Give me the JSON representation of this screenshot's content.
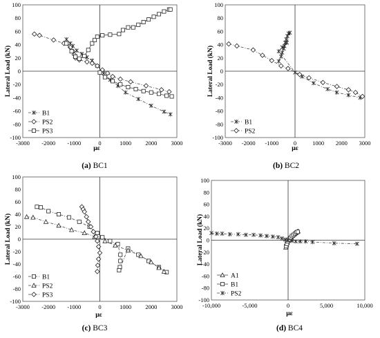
{
  "chart_data": [
    {
      "type": "scatter",
      "caption_bold": "(a)",
      "caption_rest": " BC1",
      "xlabel": "με",
      "ylabel": "Lateral Load (kN)",
      "xlim": [
        -3000,
        3000
      ],
      "ylim": [
        -100,
        100
      ],
      "xticks": [
        -3000,
        -2000,
        -1000,
        0,
        1000,
        2000,
        3000
      ],
      "yticks": [
        -100,
        -80,
        -60,
        -40,
        -20,
        0,
        20,
        40,
        60,
        80,
        100
      ],
      "legend": "bottom-left",
      "series": [
        {
          "name": "B1",
          "marker": "star",
          "line": "dashdot",
          "points": [
            [
              -1300,
              48
            ],
            [
              -1150,
              42
            ],
            [
              -1050,
              38
            ],
            [
              -900,
              31
            ],
            [
              -700,
              26
            ],
            [
              -500,
              21
            ],
            [
              -300,
              16
            ],
            [
              -100,
              8
            ],
            [
              150,
              -3
            ],
            [
              400,
              -13
            ],
            [
              700,
              -22
            ],
            [
              1000,
              -32
            ],
            [
              1500,
              -42
            ],
            [
              2000,
              -52
            ],
            [
              2500,
              -61
            ],
            [
              2750,
              -65
            ]
          ]
        },
        {
          "name": "PS2",
          "marker": "diamond",
          "line": "dashdot",
          "points": [
            [
              -2550,
              56
            ],
            [
              -2350,
              54
            ],
            [
              -1800,
              47
            ],
            [
              -1400,
              42
            ],
            [
              -1150,
              36
            ],
            [
              -1050,
              30
            ],
            [
              -1000,
              25
            ],
            [
              -950,
              20
            ],
            [
              -800,
              17
            ],
            [
              -500,
              14
            ],
            [
              -300,
              12
            ],
            [
              -100,
              8
            ],
            [
              100,
              2
            ],
            [
              300,
              -3
            ],
            [
              500,
              -8
            ],
            [
              800,
              -12
            ],
            [
              1200,
              -16
            ],
            [
              1800,
              -22
            ],
            [
              2400,
              -28
            ],
            [
              2700,
              -31
            ]
          ]
        },
        {
          "name": "PS3",
          "marker": "square",
          "line": "solid",
          "points": [
            [
              -1300,
              42
            ],
            [
              -1100,
              30
            ],
            [
              -950,
              22
            ],
            [
              -800,
              19
            ],
            [
              -600,
              23
            ],
            [
              -450,
              32
            ],
            [
              -300,
              42
            ],
            [
              -200,
              47
            ],
            [
              -100,
              52
            ],
            [
              100,
              54
            ],
            [
              400,
              55
            ],
            [
              750,
              56
            ],
            [
              900,
              62
            ],
            [
              1100,
              66
            ],
            [
              1300,
              66
            ],
            [
              1500,
              70
            ],
            [
              1700,
              74
            ],
            [
              1900,
              78
            ],
            [
              2100,
              82
            ],
            [
              2300,
              86
            ],
            [
              2500,
              90
            ],
            [
              2700,
              93
            ],
            [
              2750,
              93
            ]
          ]
        },
        {
          "name": "",
          "marker": "square",
          "line": "solid",
          "points": [
            [
              0,
              -2
            ],
            [
              200,
              -9
            ],
            [
              500,
              -15
            ],
            [
              800,
              -20
            ],
            [
              1100,
              -24
            ],
            [
              1400,
              -27
            ],
            [
              1700,
              -30
            ],
            [
              2000,
              -32
            ],
            [
              2300,
              -34
            ],
            [
              2600,
              -37
            ],
            [
              2800,
              -38
            ]
          ]
        }
      ]
    },
    {
      "type": "scatter",
      "caption_bold": "(b)",
      "caption_rest": " BC2",
      "xlabel": "με",
      "ylabel": "Lateral Load (kN)",
      "xlim": [
        -3000,
        3000
      ],
      "ylim": [
        -100,
        100
      ],
      "xticks": [
        -3000,
        -2000,
        -1000,
        0,
        1000,
        2000,
        3000
      ],
      "yticks": [
        -100,
        -80,
        -60,
        -40,
        -20,
        0,
        20,
        40,
        60,
        80,
        100
      ],
      "legend": "bottom-left",
      "series": [
        {
          "name": "B1",
          "marker": "star",
          "line": "dashdot",
          "points": [
            [
              -700,
              15
            ],
            [
              -600,
              22
            ],
            [
              -550,
              28
            ],
            [
              -480,
              34
            ],
            [
              -450,
              38
            ],
            [
              -420,
              43
            ],
            [
              -380,
              48
            ],
            [
              -330,
              53
            ],
            [
              -280,
              57
            ],
            [
              -220,
              58
            ],
            [
              -350,
              43
            ],
            [
              -550,
              36
            ],
            [
              -700,
              30
            ],
            [
              0,
              -2
            ],
            [
              300,
              -8
            ],
            [
              800,
              -18
            ],
            [
              1400,
              -27
            ],
            [
              1800,
              -32
            ],
            [
              2300,
              -36
            ],
            [
              2800,
              -40
            ]
          ]
        },
        {
          "name": "PS2",
          "marker": "diamond",
          "line": "dashdot",
          "points": [
            [
              -2850,
              41
            ],
            [
              -2500,
              38
            ],
            [
              -1800,
              32
            ],
            [
              -1400,
              24
            ],
            [
              -1000,
              16
            ],
            [
              -600,
              8
            ],
            [
              -300,
              4
            ],
            [
              200,
              -5
            ],
            [
              600,
              -10
            ],
            [
              1200,
              -17
            ],
            [
              1800,
              -23
            ],
            [
              2300,
              -28
            ],
            [
              2600,
              -32
            ],
            [
              2900,
              -38
            ]
          ]
        }
      ]
    },
    {
      "type": "scatter",
      "caption_bold": "(c)",
      "caption_rest": " BC3",
      "xlabel": "με",
      "ylabel": "Lateral Load (kN)",
      "xlim": [
        -3000,
        3000
      ],
      "ylim": [
        -100,
        100
      ],
      "xticks": [
        -3000,
        -2000,
        -1000,
        0,
        1000,
        2000,
        3000
      ],
      "yticks": [
        -100,
        -80,
        -60,
        -40,
        -20,
        0,
        20,
        40,
        60,
        80,
        100
      ],
      "legend": "bottom-left",
      "series": [
        {
          "name": "B1",
          "marker": "square",
          "line": "dashdot",
          "points": [
            [
              -2450,
              52
            ],
            [
              -2300,
              51
            ],
            [
              -2000,
              45
            ],
            [
              -1600,
              40
            ],
            [
              -1200,
              35
            ],
            [
              -800,
              28
            ],
            [
              -400,
              20
            ],
            [
              -100,
              10
            ],
            [
              100,
              3
            ],
            [
              400,
              -3
            ],
            [
              700,
              -8
            ],
            [
              800,
              -25
            ],
            [
              800,
              -35
            ],
            [
              780,
              -45
            ],
            [
              750,
              -50
            ],
            [
              1100,
              -15
            ],
            [
              1500,
              -25
            ],
            [
              1900,
              -35
            ],
            [
              2300,
              -45
            ],
            [
              2600,
              -53
            ]
          ]
        },
        {
          "name": "PS2",
          "marker": "triangle",
          "line": "dashdot",
          "points": [
            [
              -2850,
              36
            ],
            [
              -2600,
              35
            ],
            [
              -2100,
              28
            ],
            [
              -1600,
              22
            ],
            [
              -1100,
              15
            ],
            [
              -600,
              10
            ],
            [
              -200,
              4
            ],
            [
              200,
              -3
            ],
            [
              600,
              -10
            ],
            [
              1100,
              -18
            ],
            [
              1600,
              -27
            ],
            [
              2000,
              -37
            ],
            [
              2300,
              -46
            ],
            [
              2500,
              -52
            ]
          ]
        },
        {
          "name": "PS3",
          "marker": "diamond",
          "line": "dashdot",
          "points": [
            [
              -700,
              52
            ],
            [
              -650,
              48
            ],
            [
              -600,
              44
            ],
            [
              -520,
              36
            ],
            [
              -450,
              28
            ],
            [
              -350,
              20
            ],
            [
              -250,
              12
            ],
            [
              -150,
              4
            ],
            [
              -100,
              -3
            ],
            [
              -50,
              -12
            ],
            [
              0,
              -22
            ],
            [
              -50,
              -32
            ],
            [
              -80,
              -42
            ],
            [
              -100,
              -52
            ]
          ]
        }
      ]
    },
    {
      "type": "scatter",
      "caption_bold": "(d)",
      "caption_rest": " BC4",
      "xlabel": "με",
      "ylabel": "Lateral Load (kN)",
      "xlim": [
        -10000,
        10000
      ],
      "ylim": [
        -100,
        100
      ],
      "xticks": [
        -10000,
        -5000,
        0,
        5000,
        10000
      ],
      "xtick_labels": [
        "-10,000",
        "-5,000",
        "0",
        "5,000",
        "10,000"
      ],
      "yticks": [
        -100,
        -80,
        -60,
        -40,
        -20,
        0,
        20,
        40,
        60,
        80,
        100
      ],
      "legend": "bottom-left",
      "series": [
        {
          "name": "A1",
          "marker": "triangle",
          "line": "solid",
          "points": [
            [
              -300,
              -12
            ],
            [
              -200,
              -8
            ],
            [
              -100,
              -4
            ],
            [
              0,
              -1
            ],
            [
              200,
              2
            ],
            [
              400,
              5
            ],
            [
              600,
              8
            ],
            [
              800,
              10
            ],
            [
              1000,
              12
            ],
            [
              1200,
              14
            ],
            [
              1300,
              15
            ]
          ]
        },
        {
          "name": "B1",
          "marker": "square",
          "line": "solid",
          "points": [
            [
              -250,
              -10
            ],
            [
              -150,
              -6
            ],
            [
              -50,
              -2
            ],
            [
              100,
              1
            ],
            [
              300,
              4
            ],
            [
              500,
              7
            ],
            [
              700,
              9
            ],
            [
              900,
              11
            ],
            [
              1100,
              13
            ],
            [
              1250,
              14
            ]
          ]
        },
        {
          "name": "PS2",
          "marker": "star",
          "line": "dashdot",
          "points": [
            [
              -10000,
              12
            ],
            [
              -9300,
              11
            ],
            [
              -8600,
              11
            ],
            [
              -7600,
              10
            ],
            [
              -6500,
              10
            ],
            [
              -5500,
              9
            ],
            [
              -4500,
              9
            ],
            [
              -3600,
              8
            ],
            [
              -2800,
              7
            ],
            [
              -2000,
              6
            ],
            [
              -1300,
              5
            ],
            [
              -800,
              3
            ],
            [
              -400,
              1
            ],
            [
              0,
              0
            ],
            [
              500,
              -1
            ],
            [
              1000,
              -2
            ],
            [
              1600,
              -2
            ],
            [
              2300,
              -2
            ],
            [
              3200,
              -3
            ],
            [
              6000,
              -5
            ],
            [
              9000,
              -6
            ]
          ]
        }
      ]
    }
  ]
}
